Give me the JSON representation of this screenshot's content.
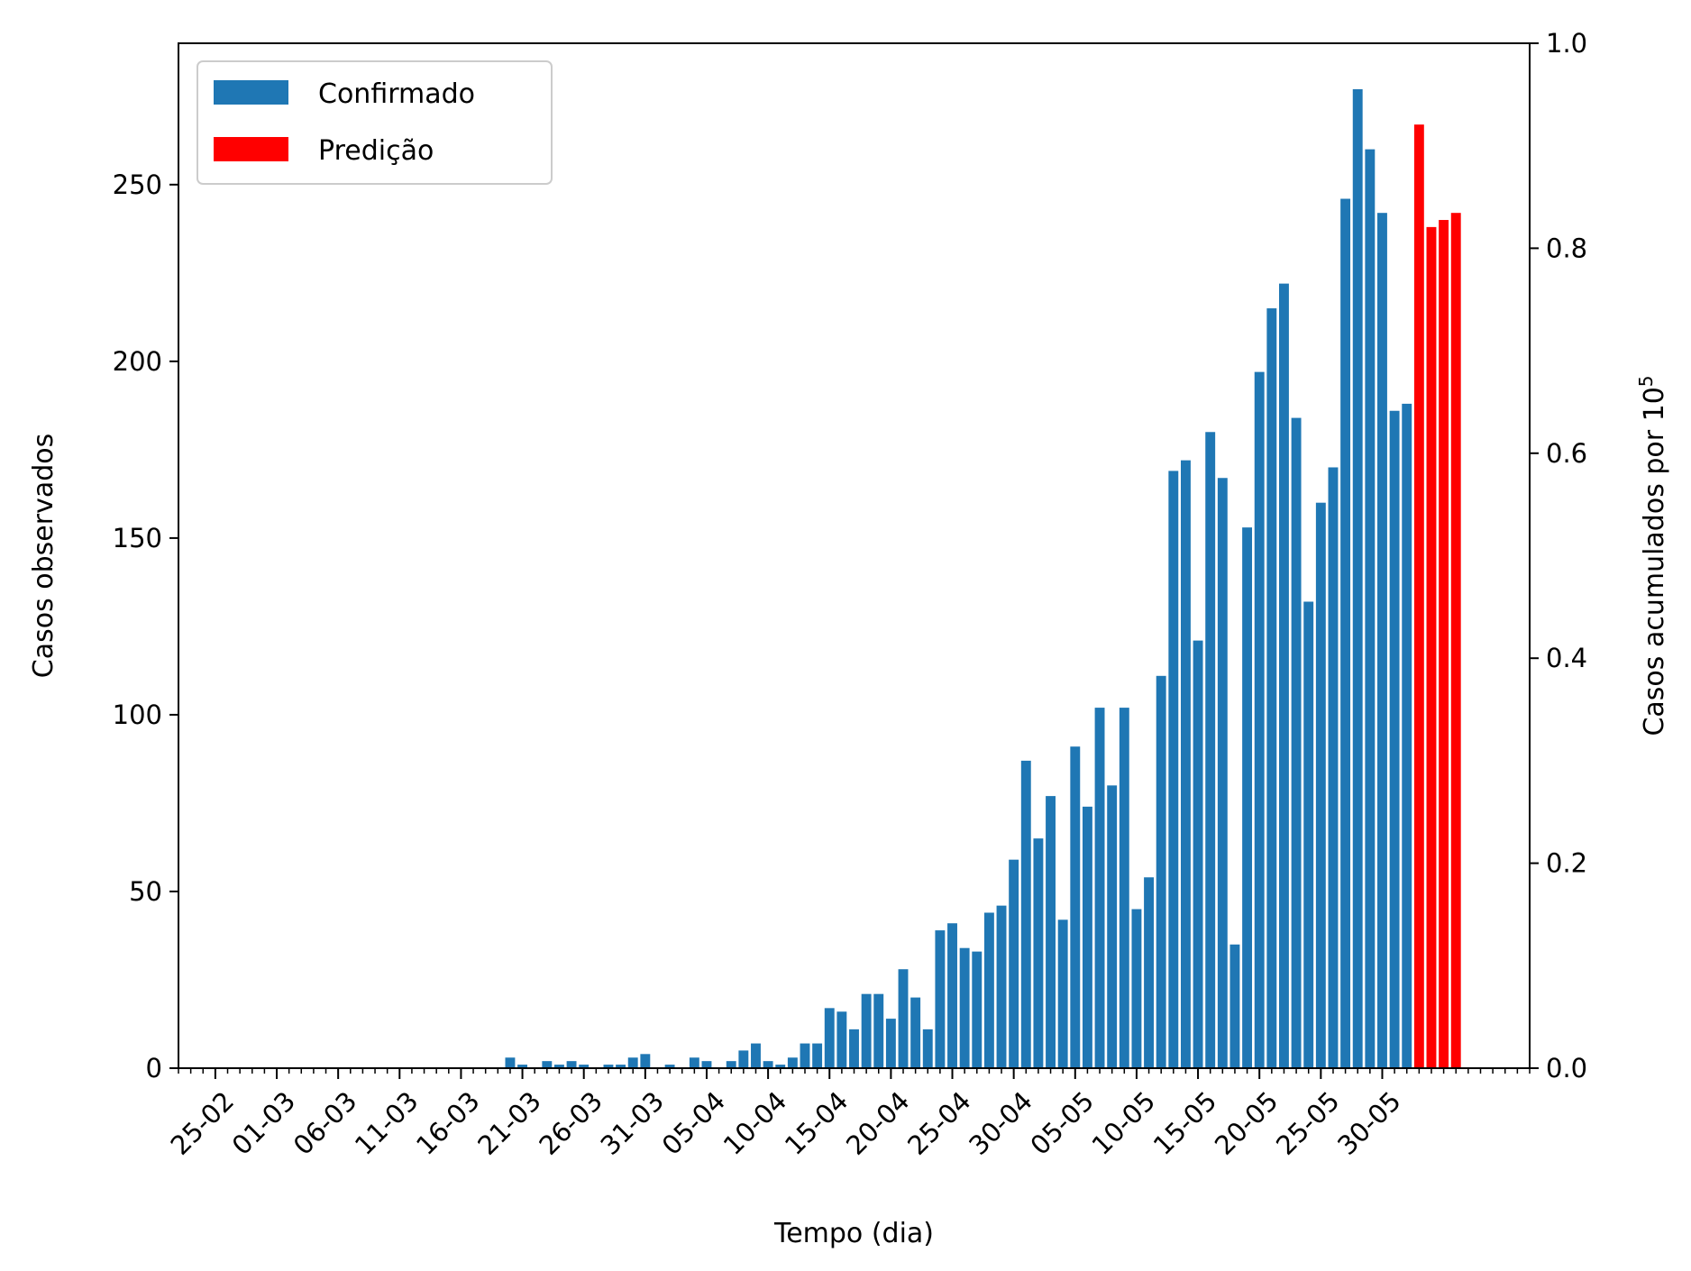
{
  "chart_data": {
    "type": "bar",
    "title": "",
    "xlabel": "Tempo (dia)",
    "ylabel": "Casos observados",
    "y2label": "Casos acumulados por 10",
    "y2label_sup": "5",
    "ylim": [
      0,
      290
    ],
    "y2lim": [
      0,
      1.0
    ],
    "yticks": [
      0,
      50,
      100,
      150,
      200,
      250
    ],
    "y2ticks": [
      "0.0",
      "0.2",
      "0.4",
      "0.6",
      "0.8",
      "1.0"
    ],
    "xtick_labels": [
      "25-02",
      "01-03",
      "06-03",
      "11-03",
      "16-03",
      "21-03",
      "26-03",
      "31-03",
      "05-04",
      "10-04",
      "15-04",
      "20-04",
      "25-04",
      "30-04",
      "05-05",
      "10-05",
      "15-05",
      "20-05",
      "25-05",
      "30-05"
    ],
    "x_day_range": [
      -3,
      107
    ],
    "legend_position": "upper-left",
    "series": [
      {
        "name": "Confirmado",
        "color": "#1f77b4",
        "start_date": "25-02",
        "values": [
          0,
          0,
          0,
          0,
          0,
          0,
          0,
          0,
          0,
          0,
          0,
          0,
          0,
          0,
          0,
          0,
          0,
          0,
          0,
          0,
          0,
          0,
          0,
          0,
          3,
          1,
          0,
          2,
          1,
          2,
          1,
          0,
          1,
          1,
          3,
          4,
          0,
          1,
          0,
          3,
          2,
          0,
          2,
          5,
          7,
          2,
          1,
          3,
          7,
          7,
          17,
          16,
          11,
          21,
          21,
          14,
          28,
          20,
          11,
          39,
          41,
          34,
          33,
          44,
          46,
          59,
          87,
          65,
          77,
          42,
          91,
          74,
          102,
          80,
          102,
          45,
          54,
          111,
          169,
          172,
          121,
          180,
          167,
          35,
          153,
          197,
          215,
          222,
          184,
          132,
          160,
          170,
          246,
          277,
          260,
          242,
          186,
          188
        ]
      },
      {
        "name": "Predição",
        "color": "#ff0000",
        "start_date": "01-06",
        "values": [
          267,
          238,
          240,
          242
        ]
      }
    ]
  }
}
